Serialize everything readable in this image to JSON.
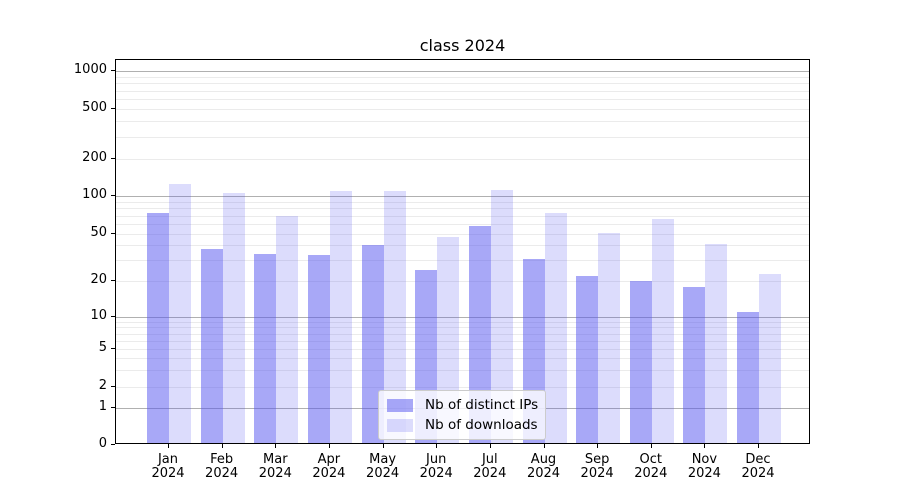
{
  "title": "class 2024",
  "legend": {
    "items": [
      {
        "label": "Nb of distinct IPs",
        "color": "rgba(82,82,240,0.5)"
      },
      {
        "label": "Nb of downloads",
        "color": "rgba(82,82,240,0.2)"
      }
    ]
  },
  "chart_data": {
    "type": "bar",
    "title": "class 2024",
    "categories": [
      "Jan 2024",
      "Feb 2024",
      "Mar 2024",
      "Apr 2024",
      "May 2024",
      "Jun 2024",
      "Jul 2024",
      "Aug 2024",
      "Sep 2024",
      "Oct 2024",
      "Nov 2024",
      "Dec 2024"
    ],
    "series": [
      {
        "name": "Nb of distinct IPs",
        "color": "rgba(82,82,240,0.5)",
        "values": [
          74,
          37,
          34,
          33,
          40,
          25,
          58,
          31,
          22,
          20,
          18,
          11
        ]
      },
      {
        "name": "Nb of downloads",
        "color": "rgba(82,82,240,0.2)",
        "values": [
          125,
          105,
          70,
          110,
          110,
          47,
          113,
          73,
          51,
          66,
          41,
          23
        ]
      }
    ],
    "xlabel": "",
    "ylabel": "",
    "yscale": "symlog",
    "y_ticks": [
      0,
      1,
      2,
      5,
      10,
      20,
      50,
      100,
      200,
      500,
      1000
    ],
    "ylim": [
      0,
      1200
    ],
    "grid": "both",
    "legend_position": "lower center"
  }
}
